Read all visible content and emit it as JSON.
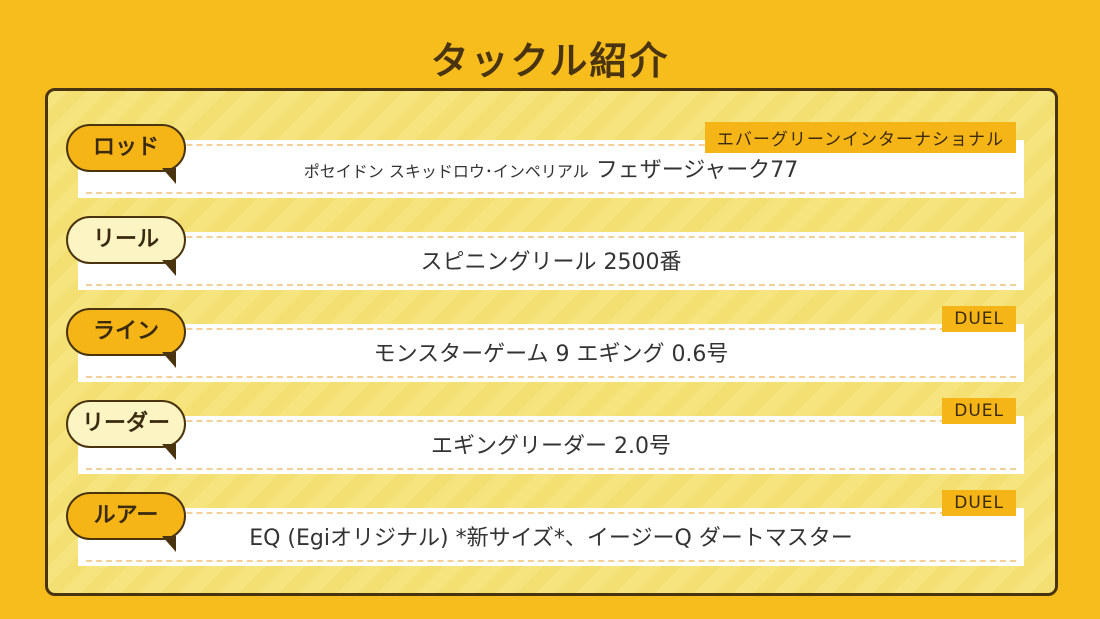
{
  "title": "タックル紹介",
  "items": [
    {
      "label": "ロッド",
      "value": "ポセイドン スキッドロウ･インペリアル",
      "value_main": "フェザージャーク77",
      "brand": "エバーグリーンインターナショナル",
      "bubble_color": "#f6b516"
    },
    {
      "label": "リール",
      "value": "",
      "value_main": "スピニングリール 2500番",
      "brand": "",
      "bubble_color": "#fdf4c4"
    },
    {
      "label": "ライン",
      "value": "",
      "value_main": "モンスターゲーム 9 エギング 0.6号",
      "brand": "DUEL",
      "bubble_color": "#f6b516"
    },
    {
      "label": "リーダー",
      "value": "",
      "value_main": "エギングリーダー 2.0号",
      "brand": "DUEL",
      "bubble_color": "#fdf4c4"
    },
    {
      "label": "ルアー",
      "value": "",
      "value_main": "EQ (Egiオリジナル) *新サイズ*、イージーQ ダートマスター",
      "brand": "DUEL",
      "bubble_color": "#f6b516"
    }
  ]
}
